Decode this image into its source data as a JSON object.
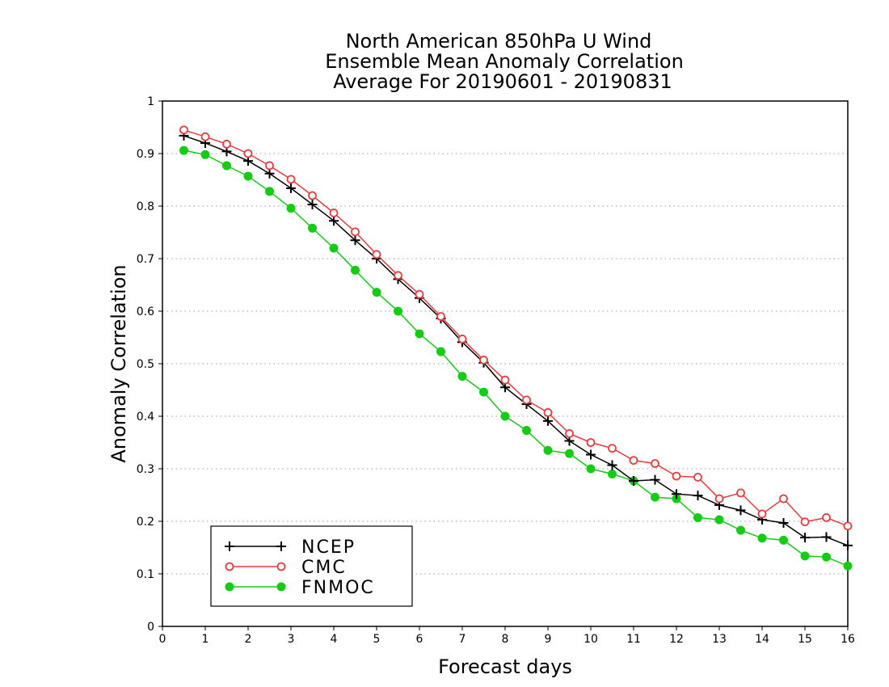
{
  "chart_data": {
    "type": "line",
    "title_lines": [
      "North American 850hPa U Wind",
      "Ensemble Mean Anomaly Correlation",
      "Average For 20190601 - 20190831"
    ],
    "xlabel": "Forecast days",
    "ylabel": "Anomaly Correlation",
    "xlim": [
      0,
      16
    ],
    "ylim": [
      0,
      1
    ],
    "x_ticks": [
      "0",
      "1",
      "2",
      "3",
      "4",
      "5",
      "6",
      "7",
      "8",
      "9",
      "10",
      "11",
      "12",
      "13",
      "14",
      "15",
      "16"
    ],
    "y_ticks": [
      "0",
      "0.1",
      "0.2",
      "0.3",
      "0.4",
      "0.5",
      "0.6",
      "0.7",
      "0.8",
      "0.9",
      "1"
    ],
    "grid": "dotted horizontal",
    "legend_position": "bottom-left",
    "x": [
      0.5,
      1,
      1.5,
      2,
      2.5,
      3,
      3.5,
      4,
      4.5,
      5,
      5.5,
      6,
      6.5,
      7,
      7.5,
      8,
      8.5,
      9,
      9.5,
      10,
      10.5,
      11,
      11.5,
      12,
      12.5,
      13,
      13.5,
      14,
      14.5,
      15,
      15.5,
      16
    ],
    "series": [
      {
        "name": "NCEP",
        "color": "#000000",
        "marker": "plus",
        "values": [
          0.934,
          0.92,
          0.904,
          0.886,
          0.862,
          0.834,
          0.803,
          0.772,
          0.735,
          0.7,
          0.661,
          0.625,
          0.586,
          0.541,
          0.502,
          0.455,
          0.423,
          0.391,
          0.353,
          0.327,
          0.307,
          0.277,
          0.279,
          0.252,
          0.249,
          0.231,
          0.221,
          0.203,
          0.197,
          0.169,
          0.17,
          0.154
        ]
      },
      {
        "name": "CMC",
        "color": "#e83c3c",
        "marker": "open-circle",
        "values": [
          0.945,
          0.932,
          0.918,
          0.9,
          0.877,
          0.851,
          0.82,
          0.787,
          0.751,
          0.708,
          0.668,
          0.632,
          0.59,
          0.547,
          0.507,
          0.469,
          0.431,
          0.407,
          0.367,
          0.35,
          0.339,
          0.316,
          0.31,
          0.286,
          0.284,
          0.243,
          0.254,
          0.214,
          0.243,
          0.199,
          0.207,
          0.191
        ]
      },
      {
        "name": "FNMOC",
        "color": "#14cc14",
        "marker": "filled-circle",
        "values": [
          0.906,
          0.898,
          0.877,
          0.857,
          0.828,
          0.796,
          0.758,
          0.72,
          0.678,
          0.636,
          0.6,
          0.557,
          0.523,
          0.476,
          0.446,
          0.4,
          0.373,
          0.335,
          0.329,
          0.3,
          0.29,
          0.277,
          0.246,
          0.243,
          0.207,
          0.203,
          0.183,
          0.168,
          0.164,
          0.134,
          0.132,
          0.115
        ]
      }
    ]
  }
}
